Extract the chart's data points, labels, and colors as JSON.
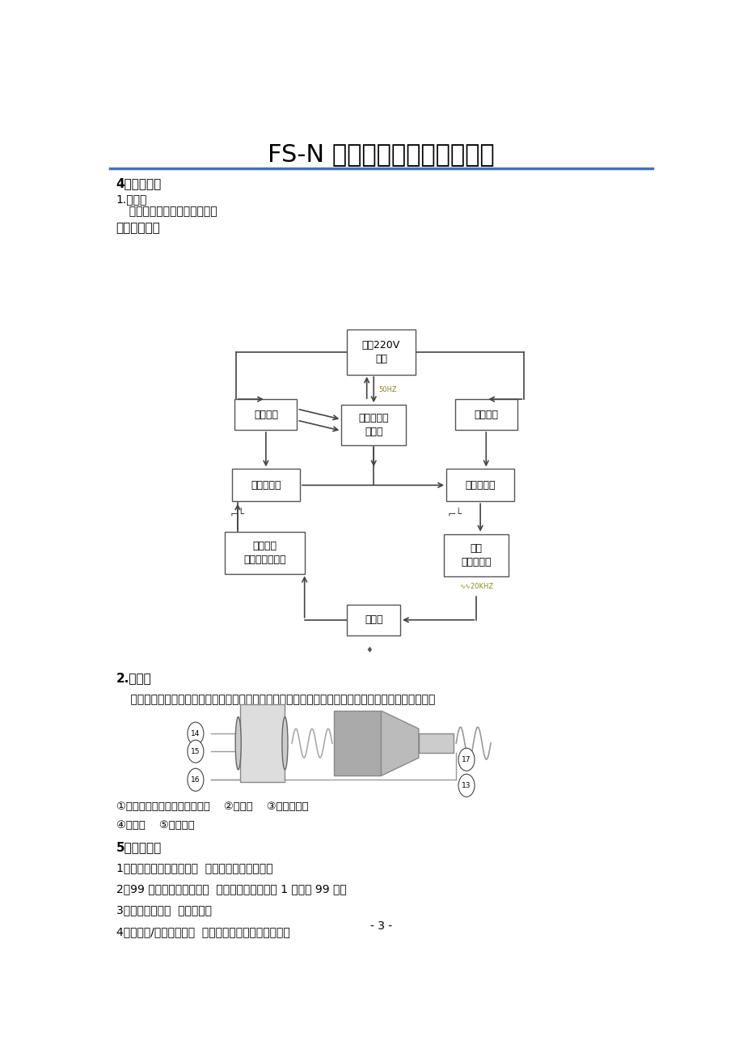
{
  "title": "FS-N 系列数字化超声波处理器",
  "title_fontsize": 22,
  "title_color": "#000000",
  "header_line_color": "#4472C4",
  "bg_color": "#ffffff",
  "section1_title": "4、电气原理",
  "section1_sub1": "1.发生器",
  "section1_sub2": "  本发生器的原理方框示意图：",
  "section1_sub3": "超声电路结构",
  "section2_title": "2.换能器",
  "section2_text": "    所采用的压力换能器是夹心单螺钉结构，不同型号和功率的换能器配用不同规格和数量的电压陶瓷片。",
  "section3_title": "5、产品特点",
  "features": [
    "1．自动谐振点和功率控制  无需经常手动调节能量",
    "2．99 小时过程控制定时器  控制总工作时间：从 1 秒钟到 99 小时",
    "3．工作时间显示  呈累计状态",
    "4．独立开/关脉冲定时器  确保高强度处理温度敏感样品"
  ],
  "labels_line1": "①高压强度换能器专用紧固螺丝    ②电极片    ③电压陶瓷片",
  "labels_line2": "④变幅杆    ⑤连接螺丝",
  "footer": "- 3 -"
}
